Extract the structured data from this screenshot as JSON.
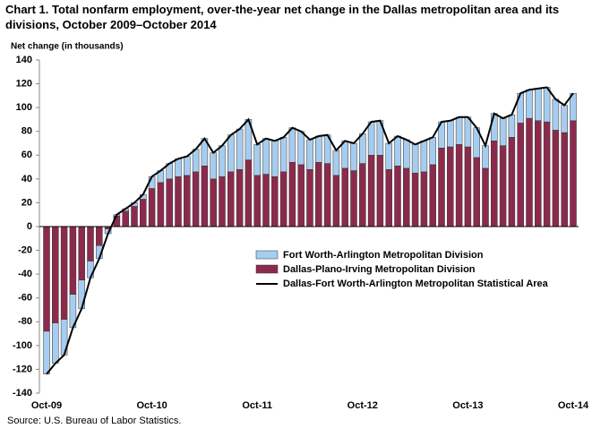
{
  "chart_data": {
    "type": "stacked-bar-line",
    "title": "Chart 1. Total nonfarm employment, over-the-year net change in the Dallas metropolitan area and its divisions, October 2009–October  2014",
    "y_label": "Net change (in thousands)",
    "source": "Source: U.S. Bureau of Labor Statistics.",
    "categories": [
      "Oct-09",
      null,
      null,
      null,
      null,
      null,
      null,
      null,
      null,
      null,
      null,
      null,
      "Oct-10",
      null,
      null,
      null,
      null,
      null,
      null,
      null,
      null,
      null,
      null,
      null,
      "Oct-11",
      null,
      null,
      null,
      null,
      null,
      null,
      null,
      null,
      null,
      null,
      null,
      "Oct-12",
      null,
      null,
      null,
      null,
      null,
      null,
      null,
      null,
      null,
      null,
      null,
      "Oct-13",
      null,
      null,
      null,
      null,
      null,
      null,
      null,
      null,
      null,
      null,
      null,
      "Oct-14"
    ],
    "series": [
      {
        "name": "Fort Worth-Arlington Metropolitan Division",
        "color": "#a6cdf0",
        "kind": "bar",
        "values": [
          -36,
          -34,
          -30,
          -28,
          -24,
          -14,
          -11,
          -4,
          1,
          2,
          3,
          4,
          10,
          10,
          13,
          15,
          16,
          19,
          23,
          22,
          26,
          31,
          34,
          34,
          26,
          30,
          30,
          29,
          29,
          28,
          25,
          22,
          24,
          21,
          23,
          23,
          25,
          28,
          29,
          22,
          25,
          24,
          24,
          26,
          23,
          22,
          22,
          23,
          25,
          25,
          19,
          23,
          23,
          19,
          25,
          24,
          27,
          29,
          26,
          23,
          23
        ]
      },
      {
        "name": "Dallas-Plano-Irving Metropolitan Division",
        "color": "#8b2a4c",
        "kind": "bar",
        "values": [
          -88,
          -81,
          -78,
          -57,
          -45,
          -29,
          -16,
          -2,
          9,
          13,
          17,
          23,
          32,
          37,
          40,
          42,
          43,
          46,
          51,
          40,
          42,
          46,
          48,
          56,
          43,
          44,
          42,
          46,
          54,
          52,
          48,
          54,
          53,
          43,
          49,
          47,
          53,
          60,
          60,
          48,
          51,
          49,
          45,
          46,
          52,
          66,
          67,
          69,
          67,
          58,
          49,
          72,
          68,
          75,
          87,
          91,
          89,
          88,
          81,
          79,
          89
        ]
      },
      {
        "name": "Dallas-Fort Worth-Arlington Metropolitan Statistical Area",
        "color": "#000000",
        "kind": "line",
        "values": [
          -124,
          -115,
          -108,
          -85,
          -69,
          -43,
          -27,
          -6,
          10,
          15,
          20,
          27,
          42,
          47,
          53,
          57,
          59,
          65,
          74,
          62,
          68,
          77,
          82,
          90,
          69,
          74,
          72,
          75,
          83,
          80,
          73,
          76,
          77,
          64,
          72,
          70,
          78,
          88,
          89,
          70,
          76,
          73,
          69,
          72,
          75,
          88,
          89,
          92,
          92,
          83,
          68,
          95,
          91,
          94,
          112,
          115,
          116,
          117,
          107,
          102,
          112
        ]
      }
    ],
    "ylim": [
      -140,
      140
    ],
    "yticks": [
      -140,
      -120,
      -100,
      -80,
      -60,
      -40,
      -20,
      0,
      20,
      40,
      60,
      80,
      100,
      120,
      140
    ],
    "grid": false
  }
}
